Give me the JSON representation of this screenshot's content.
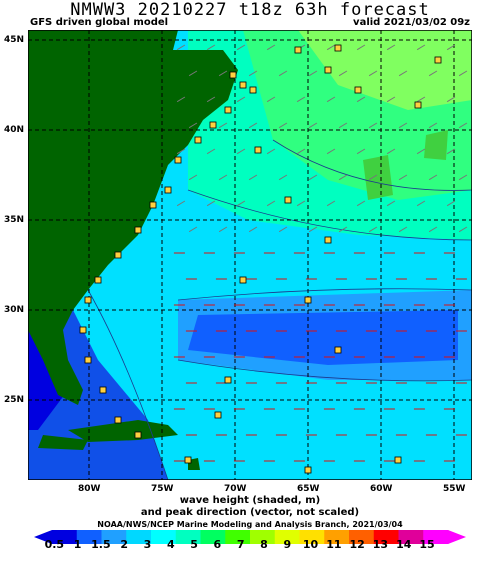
{
  "header": {
    "title": "NMWW3 20210227 t18z    63h forecast",
    "model": "GFS driven global model",
    "valid": "valid 2021/03/02 09z"
  },
  "axes": {
    "lat_labels": [
      "45N",
      "40N",
      "35N",
      "30N",
      "25N"
    ],
    "lon_labels": [
      "80W",
      "75W",
      "70W",
      "65W",
      "60W",
      "55W"
    ]
  },
  "caption": {
    "line1": "wave height (shaded, m)",
    "line2": "and peak direction (vector, not scaled)",
    "credit": "NOAA/NWS/NCEP Marine Modeling and Analysis Branch, 2021/03/04"
  },
  "colorbar": {
    "labels": [
      "0.5",
      "1",
      "1.5",
      "2",
      "3",
      "4",
      "5",
      "6",
      "7",
      "8",
      "9",
      "10",
      "11",
      "12",
      "13",
      "14",
      "15"
    ],
    "colors": [
      "#0000e0",
      "#1060ff",
      "#20a0ff",
      "#00d8ff",
      "#00ffff",
      "#00ffc0",
      "#00ff60",
      "#40ff00",
      "#a0ff00",
      "#e0ff00",
      "#ffe000",
      "#ffa000",
      "#ff6000",
      "#ff0000",
      "#e0009a",
      "#ff00ff"
    ]
  },
  "map_colors": {
    "land": "#006400",
    "deep_blue": "#1050e8",
    "mid_blue": "#20a0ff",
    "cyan": "#00e0ff",
    "light_green": "#00ffc0",
    "green": "#30ff80",
    "arrow": "#dd1111",
    "vector_gray": "#777777"
  }
}
